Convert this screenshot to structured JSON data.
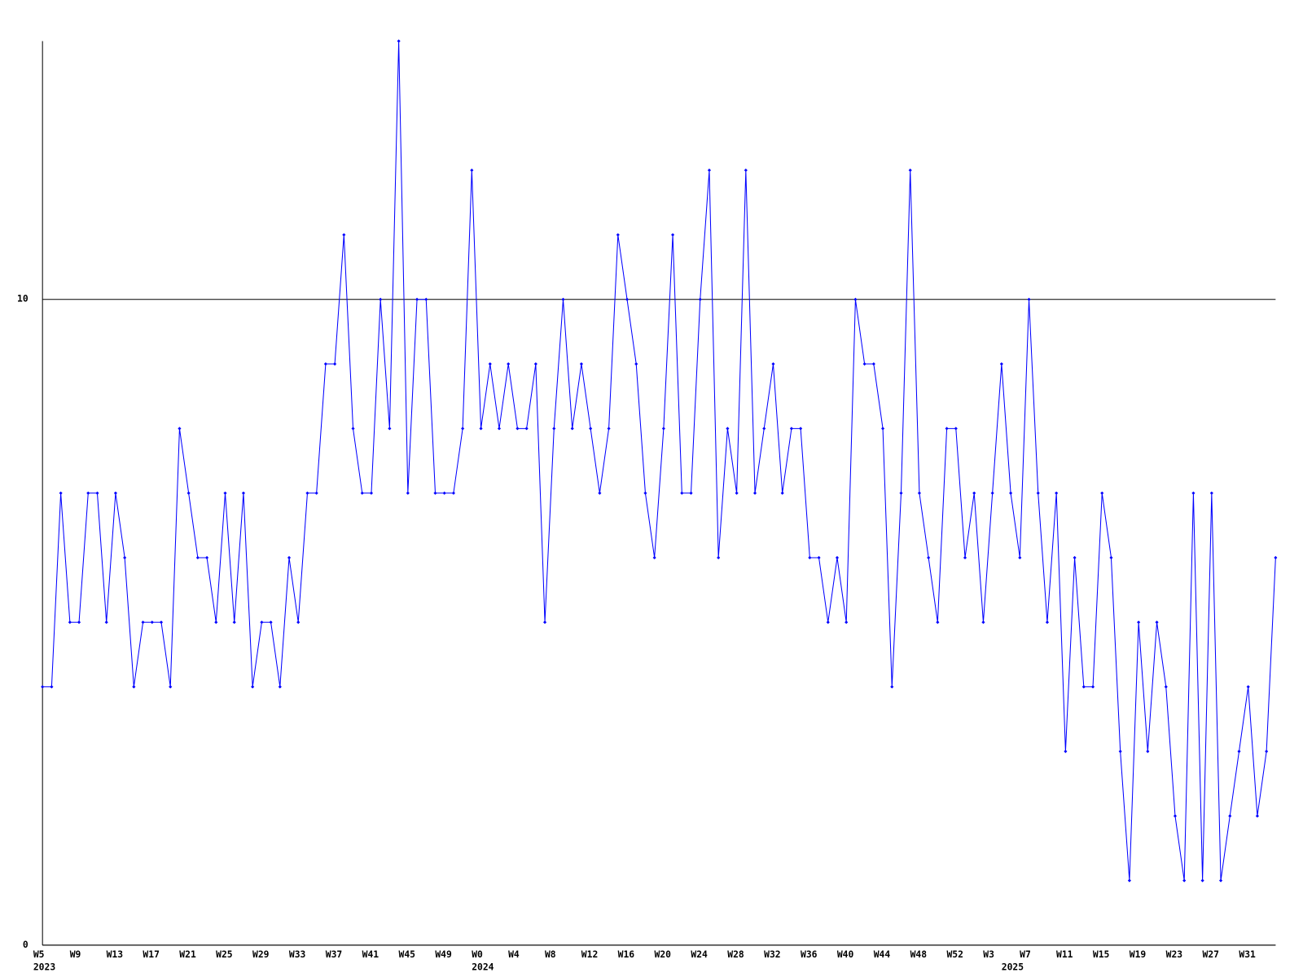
{
  "chart_data": {
    "type": "line",
    "categories": [
      "W5",
      null,
      null,
      null,
      "W9",
      null,
      null,
      null,
      "W13",
      null,
      null,
      null,
      "W17",
      null,
      null,
      null,
      "W21",
      null,
      null,
      null,
      "W25",
      null,
      null,
      null,
      "W29",
      null,
      null,
      null,
      "W33",
      null,
      null,
      null,
      "W37",
      null,
      null,
      null,
      "W41",
      null,
      null,
      null,
      "W45",
      null,
      null,
      null,
      "W49",
      null,
      null,
      null,
      "W0",
      null,
      null,
      null,
      "W4",
      null,
      null,
      null,
      "W8",
      null,
      null,
      null,
      "W12",
      null,
      null,
      null,
      "W16",
      null,
      null,
      null,
      "W20",
      null,
      null,
      null,
      "W24",
      null,
      null,
      null,
      "W28",
      null,
      null,
      null,
      "W32",
      null,
      null,
      null,
      "W36",
      null,
      null,
      null,
      "W40",
      null,
      null,
      null,
      "W44",
      null,
      null,
      null,
      "W48",
      null,
      null,
      null,
      "W52",
      null,
      null,
      null,
      "W3",
      null,
      null,
      null,
      "W7",
      null,
      null,
      null,
      "W11",
      null,
      null,
      null,
      "W15",
      null,
      null,
      null,
      "W19",
      null,
      null,
      null,
      "W23",
      null,
      null,
      null,
      "W27",
      null,
      null,
      null,
      "W31",
      null,
      null,
      null
    ],
    "years": [
      "2023",
      null,
      null,
      null,
      null,
      null,
      null,
      null,
      null,
      null,
      null,
      null,
      null,
      null,
      null,
      null,
      null,
      null,
      null,
      null,
      null,
      null,
      null,
      null,
      null,
      null,
      null,
      null,
      null,
      null,
      null,
      null,
      null,
      null,
      null,
      null,
      null,
      null,
      null,
      null,
      null,
      null,
      null,
      null,
      null,
      null,
      null,
      null,
      "2024",
      null,
      null,
      null,
      null,
      null,
      null,
      null,
      null,
      null,
      null,
      null,
      null,
      null,
      null,
      null,
      null,
      null,
      null,
      null,
      null,
      null,
      null,
      null,
      null,
      null,
      null,
      null,
      null,
      null,
      null,
      null,
      null,
      null,
      null,
      null,
      null,
      null,
      null,
      null,
      null,
      null,
      null,
      null,
      null,
      null,
      null,
      null,
      null,
      null,
      null,
      null,
      null,
      null,
      null,
      null,
      null,
      null,
      "2025",
      null,
      null,
      null,
      null,
      null,
      null,
      null,
      null,
      null,
      null,
      null,
      null,
      null,
      null,
      null,
      null,
      null,
      null,
      null,
      null,
      null,
      null,
      null,
      null,
      null,
      null,
      null,
      null,
      null,
      null,
      null
    ],
    "values": [
      4,
      4,
      7,
      5,
      5,
      7,
      7,
      5,
      7,
      6,
      4,
      5,
      5,
      5,
      4,
      8,
      7,
      6,
      6,
      5,
      7,
      5,
      7,
      4,
      5,
      5,
      4,
      6,
      5,
      7,
      7,
      9,
      9,
      11,
      8,
      7,
      7,
      10,
      8,
      14,
      7,
      10,
      10,
      7,
      7,
      7,
      8,
      12,
      8,
      9,
      8,
      9,
      8,
      8,
      9,
      5,
      8,
      10,
      8,
      9,
      8,
      7,
      8,
      11,
      10,
      9,
      7,
      6,
      8,
      11,
      7,
      7,
      10,
      12,
      6,
      8,
      7,
      12,
      7,
      8,
      9,
      7,
      8,
      8,
      6,
      6,
      5,
      6,
      5,
      10,
      9,
      9,
      8,
      4,
      7,
      12,
      7,
      6,
      5,
      8,
      8,
      6,
      7,
      5,
      7,
      9,
      7,
      6,
      10,
      7,
      5,
      7,
      3,
      6,
      4,
      4,
      7,
      6,
      3,
      1,
      5,
      3,
      5,
      4,
      2,
      1,
      7,
      1,
      7,
      1,
      2,
      3,
      4,
      2,
      3,
      6
    ],
    "color": "#0000ff",
    "ylim": [
      0,
      14
    ],
    "yticks": [
      0,
      10
    ],
    "grid": true
  }
}
